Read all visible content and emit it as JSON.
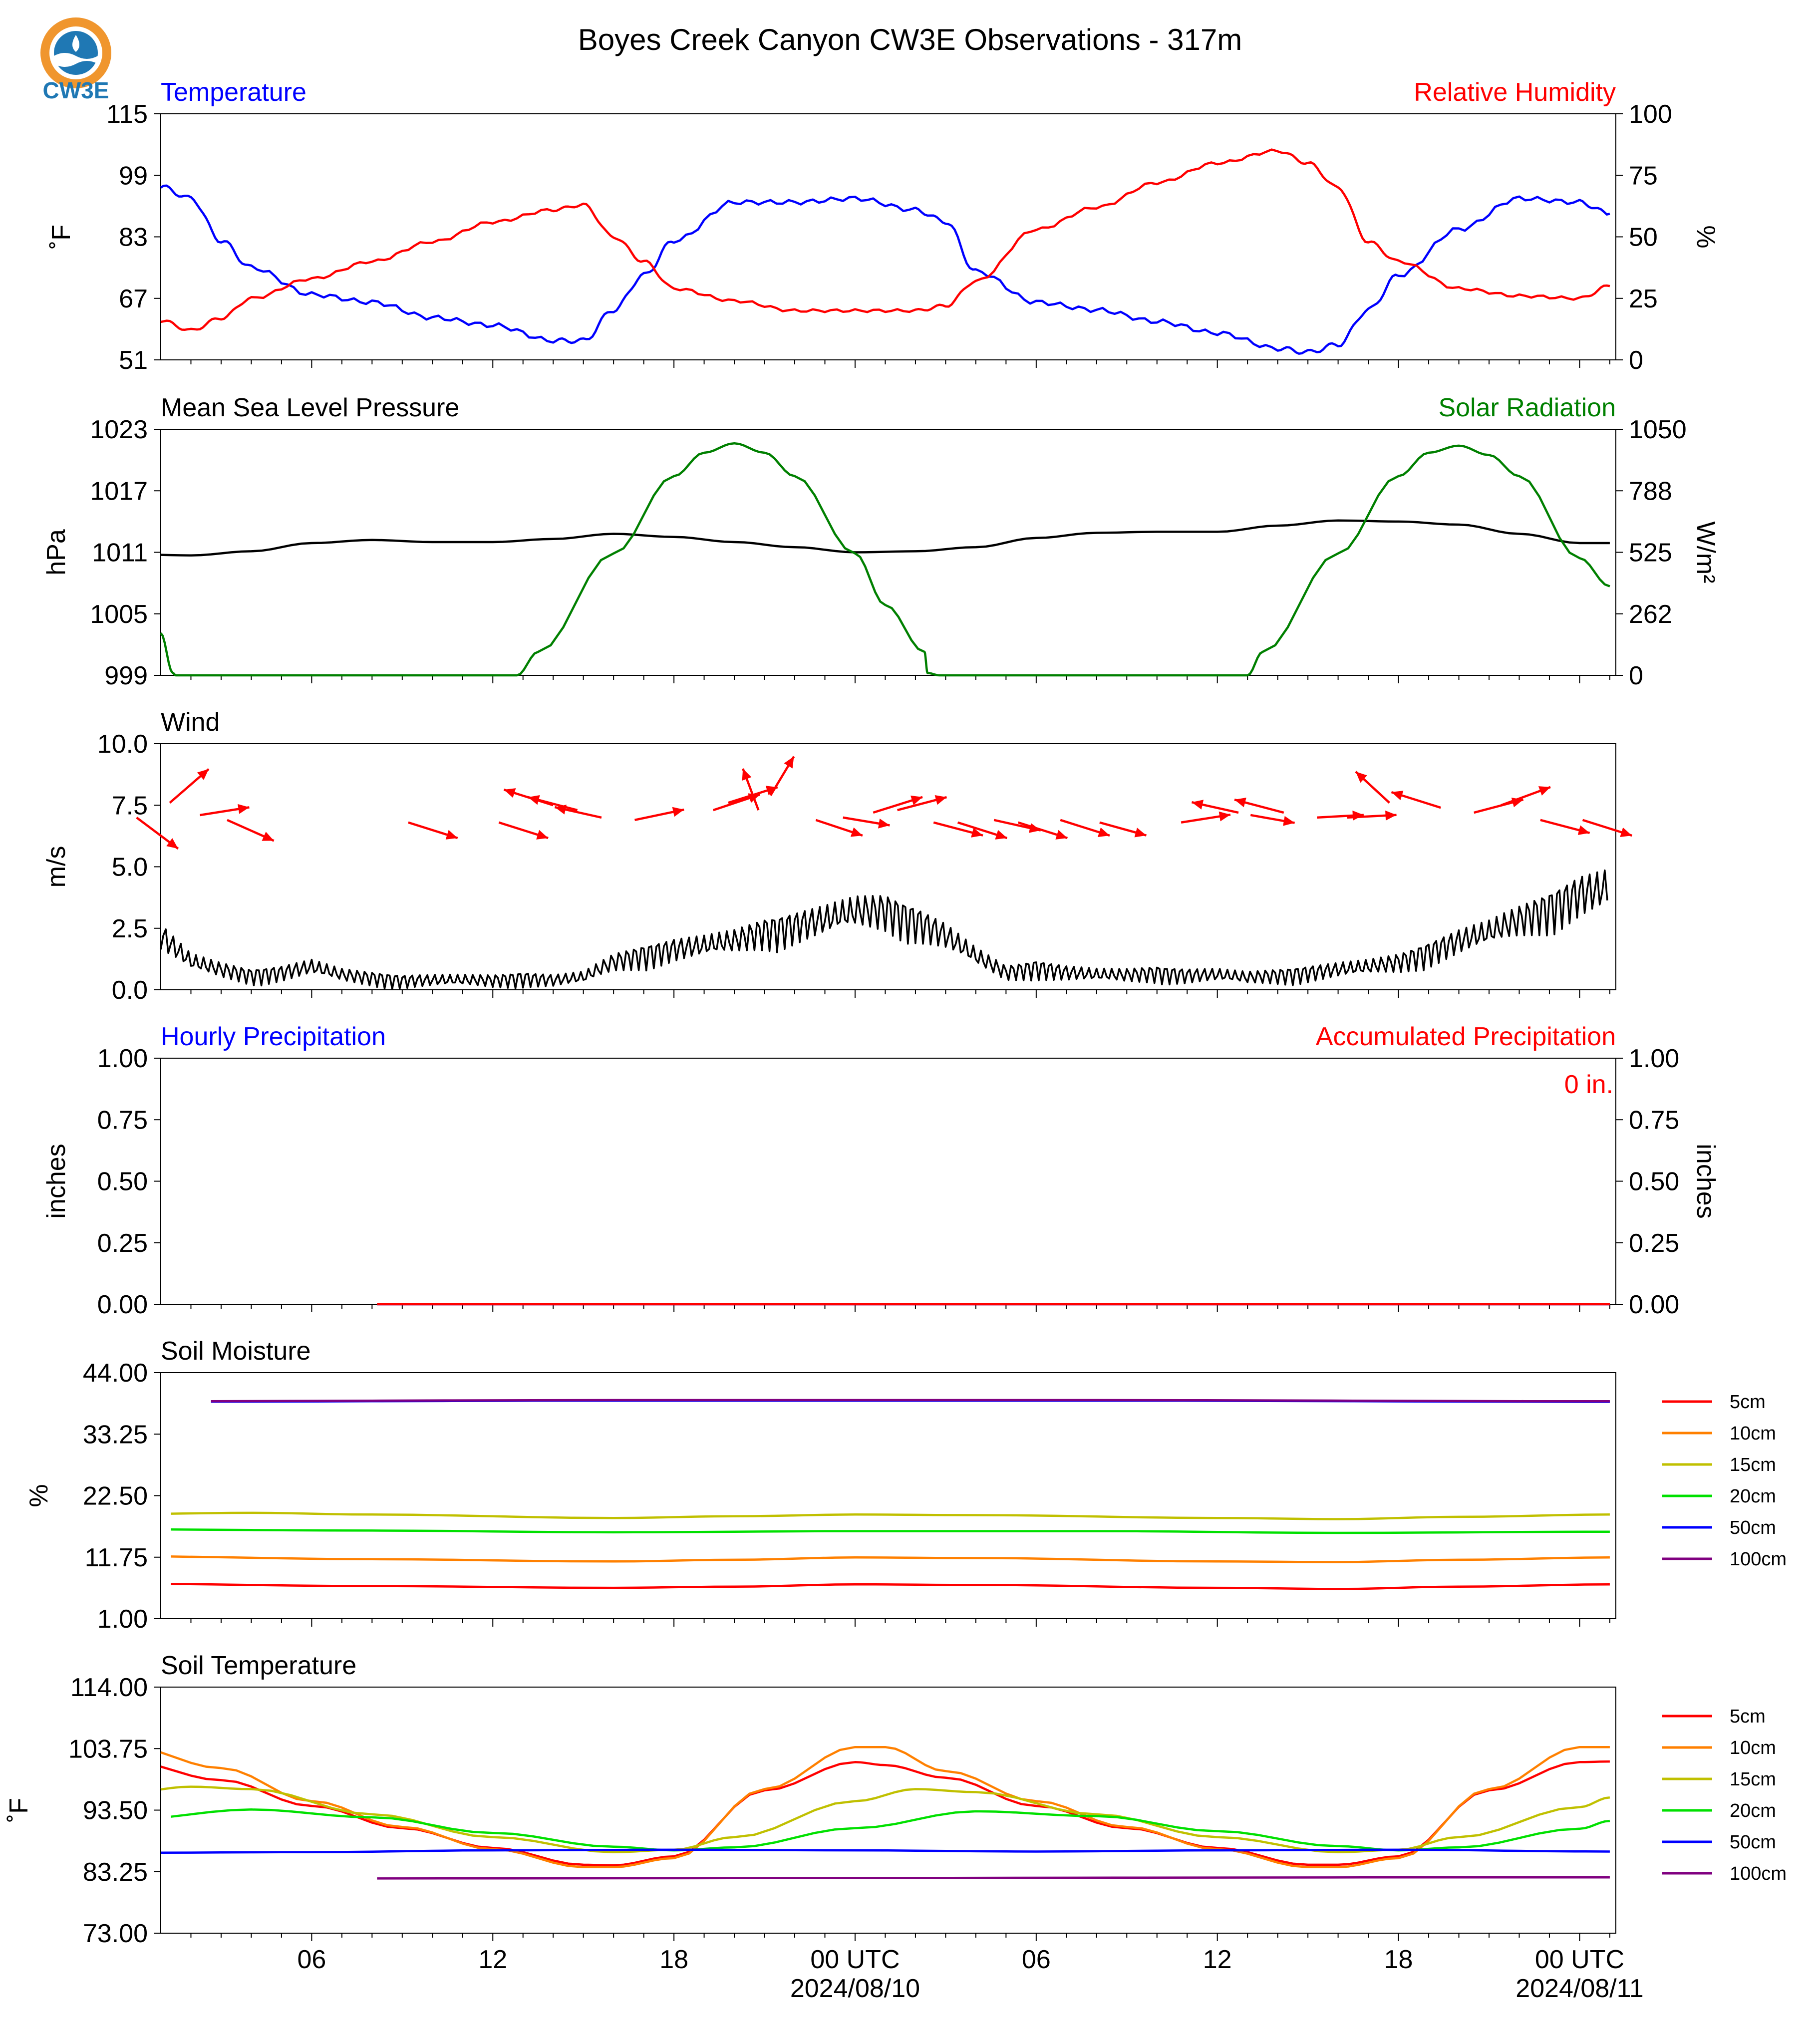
{
  "title": "Boyes Creek Canyon CW3E Observations - 317m",
  "logo_text": "CW3E",
  "colors": {
    "temperature": "#0000ff",
    "humidity": "#ff0000",
    "pressure": "#000000",
    "solar": "#008000",
    "wind_speed": "#000000",
    "wind_arrows": "#ff0000",
    "precip_hourly": "#0000ff",
    "precip_accum": "#ff0000",
    "depths": [
      "#ff0000",
      "#ff8000",
      "#c0c000",
      "#00e000",
      "#0000ff",
      "#800080"
    ],
    "logo_orange": "#f0962e",
    "logo_blue": "#1f78b4"
  },
  "x_axis": {
    "ticks": [
      "06",
      "12",
      "18",
      "00 UTC",
      "06",
      "12",
      "18",
      "00 UTC"
    ],
    "dates": [
      "2024/08/10",
      "2024/08/11"
    ]
  },
  "chart_data": [
    {
      "id": "temp_rh",
      "type": "line",
      "left_title": "Temperature",
      "right_title": "Relative Humidity",
      "ylabel": "˚F",
      "ylabel_right": "%",
      "yticks": [
        "115",
        "99",
        "83",
        "67",
        "51"
      ],
      "yticks_right": [
        "100",
        "75",
        "50",
        "25",
        "0"
      ],
      "ylim": [
        51,
        115
      ],
      "ylim_right": [
        0,
        100
      ],
      "x_hours": [
        1,
        2,
        3,
        4,
        6,
        8,
        10,
        12,
        14,
        15,
        16,
        17,
        18,
        20,
        22,
        24,
        26,
        27,
        28,
        30,
        32,
        34,
        36,
        38,
        39,
        40,
        41,
        42,
        44,
        46,
        48,
        49
      ],
      "series": [
        {
          "name": "Temperature",
          "axis": "left",
          "values": [
            96,
            93,
            82,
            75,
            68,
            66,
            62,
            60,
            56,
            56,
            64,
            73,
            82,
            92,
            92,
            93,
            90,
            87,
            74,
            66,
            64,
            61,
            58,
            54,
            53,
            55,
            64,
            73,
            85,
            93,
            92,
            89
          ]
        },
        {
          "name": "Relative Humidity",
          "axis": "left_scaled",
          "values": [
            16,
            12,
            17,
            25,
            33,
            40,
            48,
            56,
            61,
            63,
            50,
            40,
            29,
            24,
            20,
            20,
            20,
            22,
            32,
            53,
            62,
            72,
            80,
            85,
            80,
            70,
            48,
            40,
            29,
            26,
            25,
            30
          ]
        }
      ]
    },
    {
      "id": "pressure_solar",
      "type": "line",
      "left_title": "Mean Sea Level Pressure",
      "right_title": "Solar Radiation",
      "ylabel": "hPa",
      "ylabel_right": "W/m²",
      "yticks": [
        "1023",
        "1017",
        "1011",
        "1005",
        "999"
      ],
      "yticks_right": [
        "1050",
        "788",
        "525",
        "262",
        "0"
      ],
      "ylim": [
        999,
        1023
      ],
      "ylim_right": [
        0,
        1050
      ],
      "series": [
        {
          "name": "Mean Sea Level Pressure",
          "axis": "left",
          "x": [
            0,
            2,
            4,
            6,
            8,
            10,
            12,
            14,
            16,
            18,
            20,
            22,
            24,
            26,
            28,
            30,
            32,
            34,
            36,
            38,
            40,
            42,
            44,
            46,
            48,
            49
          ],
          "values": [
            1010.8,
            1010.7,
            1011.1,
            1011.9,
            1012.2,
            1012.0,
            1012.0,
            1012.3,
            1012.8,
            1012.5,
            1012.0,
            1011.5,
            1011.0,
            1011.1,
            1011.5,
            1012.4,
            1012.9,
            1013.0,
            1013.0,
            1013.6,
            1014.1,
            1014.0,
            1013.7,
            1012.8,
            1011.9,
            1011.9
          ]
        },
        {
          "name": "Solar Radiation",
          "axis": "right",
          "x": [
            0,
            1,
            1.4,
            1.5,
            2,
            12.3,
            12.8,
            13.5,
            16,
            18,
            19,
            20,
            21,
            22,
            24,
            25,
            26.3,
            26.4,
            26.8,
            36.5,
            37,
            37.5,
            40,
            42,
            43,
            44,
            45,
            46,
            48,
            49
          ],
          "values": [
            390,
            180,
            10,
            0,
            0,
            0,
            0,
            100,
            520,
            850,
            950,
            990,
            950,
            850,
            520,
            300,
            100,
            10,
            0,
            0,
            0,
            100,
            520,
            850,
            950,
            980,
            940,
            850,
            500,
            380
          ]
        }
      ]
    },
    {
      "id": "wind",
      "type": "line",
      "left_title": "Wind",
      "ylabel": "m/s",
      "yticks": [
        "10.0",
        "7.5",
        "5.0",
        "2.5",
        "0.0"
      ],
      "ylim": [
        0,
        10
      ],
      "series": [
        {
          "name": "Wind Speed",
          "axis": "left",
          "x": [
            0,
            1,
            2,
            3,
            4,
            5,
            6,
            7,
            8,
            9,
            10,
            11,
            12,
            13,
            14,
            15,
            16,
            17,
            18,
            19,
            20,
            21,
            22,
            23,
            24,
            25,
            26,
            27,
            28,
            29,
            30,
            31,
            32,
            33,
            34,
            35,
            36,
            37,
            38,
            39,
            40,
            41,
            42,
            43,
            44,
            45,
            46,
            47,
            48,
            49
          ],
          "values": [
            2.2,
            2.0,
            1.0,
            0.7,
            0.5,
            0.6,
            0.8,
            0.5,
            0.4,
            0.3,
            0.3,
            0.3,
            0.3,
            0.4,
            0.3,
            0.4,
            1.0,
            1.3,
            1.5,
            1.6,
            1.8,
            2.2,
            2.4,
            2.6,
            2.9,
            3.0,
            2.6,
            2.0,
            1.2,
            0.6,
            0.8,
            0.6,
            0.5,
            0.5,
            0.6,
            0.5,
            0.5,
            0.4,
            0.5,
            0.6,
            0.7,
            0.8,
            1.0,
            1.4,
            1.8,
            2.1,
            2.6,
            3.1,
            3.6,
            3.8
          ]
        },
        {
          "name": "Wind Direction",
          "type": "vector",
          "hours": [
            0.2,
            1.3,
            2.3,
            3.2,
            9.2,
            12.2,
            14,
            14.8,
            15.6,
            16.7,
            19.3,
            19.8,
            20.8,
            21.2,
            22.7,
            23.6,
            24.6,
            25.4,
            26.6,
            27.4,
            28.6,
            29.4,
            30.8,
            32.1,
            34.8,
            36.7,
            37.1,
            38.2,
            39.3,
            40.3,
            41.7,
            43.4,
            44.5,
            45.4,
            46.7,
            48.1
          ],
          "speed": [
            7.0,
            7.6,
            7.1,
            6.9,
            6.8,
            6.8,
            7.5,
            7.3,
            7.0,
            6.9,
            7.3,
            7.6,
            7.3,
            7.9,
            6.9,
            7.0,
            7.2,
            7.3,
            6.8,
            6.8,
            6.9,
            6.8,
            6.9,
            6.8,
            6.8,
            7.2,
            7.1,
            7.2,
            7.0,
            7.0,
            7.6,
            7.4,
            7.2,
            7.5,
            6.9,
            6.9
          ],
          "u": [
            1.6,
            1.5,
            1.9,
            1.8,
            1.9,
            1.9,
            -1.9,
            -1.9,
            -1.8,
            1.9,
            1.8,
            1.9,
            -0.6,
            0.9,
            1.8,
            1.8,
            1.9,
            1.9,
            1.9,
            1.9,
            1.8,
            1.9,
            1.9,
            1.8,
            1.9,
            -1.8,
            1.7,
            -1.9,
            1.8,
            1.9,
            -1.3,
            -1.9,
            1.9,
            1.9,
            1.9,
            1.9
          ],
          "v": [
            -1.2,
            1.3,
            0.3,
            -0.8,
            -0.6,
            -0.6,
            0.6,
            0.5,
            0.4,
            0.4,
            0.6,
            0.6,
            1.6,
            1.5,
            -0.6,
            -0.3,
            0.6,
            0.5,
            -0.5,
            -0.6,
            -0.4,
            -0.6,
            -0.6,
            -0.5,
            0.3,
            0.4,
            -0.3,
            0.5,
            0.1,
            0.1,
            1.2,
            0.6,
            0.5,
            0.7,
            -0.5,
            -0.6
          ]
        }
      ]
    },
    {
      "id": "precip",
      "type": "line",
      "left_title": "Hourly Precipitation",
      "right_title": "Accumulated Precipitation",
      "annotation": "0 in.",
      "ylabel": "inches",
      "ylabel_right": "inches",
      "yticks": [
        "1.00",
        "0.75",
        "0.50",
        "0.25",
        "0.00"
      ],
      "yticks_right": [
        "1.00",
        "0.75",
        "0.50",
        "0.25",
        "0.00"
      ],
      "ylim": [
        0,
        1
      ],
      "ylim_right": [
        0,
        1
      ],
      "series": [
        {
          "name": "Hourly Precipitation",
          "axis": "left",
          "x": [
            0,
            49
          ],
          "values": [
            0,
            0
          ]
        },
        {
          "name": "Accumulated Precipitation",
          "axis": "right",
          "x": [
            0,
            49
          ],
          "values": [
            0,
            0
          ]
        }
      ]
    },
    {
      "id": "soil_moisture",
      "type": "line",
      "left_title": "Soil Moisture",
      "ylabel": "%",
      "yticks": [
        "44.00",
        "33.25",
        "22.50",
        "11.75",
        "1.00"
      ],
      "ylim": [
        1,
        44
      ],
      "legend": [
        "5cm",
        "10cm",
        "15cm",
        "20cm",
        "50cm",
        "100cm"
      ],
      "series": [
        {
          "name": "5cm",
          "axis": "left",
          "x": [
            0,
            8,
            16,
            20,
            24,
            28,
            36,
            40,
            44,
            49
          ],
          "values": [
            7.1,
            6.7,
            6.4,
            6.6,
            7.0,
            6.9,
            6.4,
            6.2,
            6.6,
            7.0
          ]
        },
        {
          "name": "10cm",
          "axis": "left",
          "x": [
            0,
            8,
            16,
            20,
            24,
            28,
            36,
            40,
            44,
            49
          ],
          "values": [
            11.9,
            11.4,
            11.0,
            11.3,
            11.7,
            11.6,
            11.0,
            10.9,
            11.3,
            11.7
          ]
        },
        {
          "name": "15cm",
          "axis": "left",
          "x": [
            0,
            4,
            8,
            16,
            20,
            24,
            28,
            36,
            40,
            44,
            49
          ],
          "values": [
            19.3,
            19.5,
            19.2,
            18.6,
            18.9,
            19.2,
            19.1,
            18.6,
            18.4,
            18.8,
            19.2
          ]
        },
        {
          "name": "20cm",
          "axis": "left",
          "x": [
            0,
            8,
            16,
            24,
            32,
            40,
            49
          ],
          "values": [
            16.6,
            16.4,
            16.1,
            16.3,
            16.3,
            16.0,
            16.2
          ]
        },
        {
          "name": "50cm",
          "axis": "left",
          "x": [
            0,
            16,
            32,
            49
          ],
          "values": [
            38.9,
            39.1,
            39.1,
            38.9
          ]
        },
        {
          "name": "100cm",
          "axis": "left",
          "x": [
            0,
            16,
            32,
            49
          ],
          "values": [
            39.0,
            39.2,
            39.2,
            39.0
          ]
        }
      ]
    },
    {
      "id": "soil_temperature",
      "type": "line",
      "left_title": "Soil Temperature",
      "ylabel": "˚F",
      "yticks": [
        "114.00",
        "103.75",
        "93.50",
        "83.25",
        "73.00"
      ],
      "ylim": [
        73,
        114
      ],
      "legend": [
        "5cm",
        "10cm",
        "15cm",
        "20cm",
        "50cm",
        "100cm"
      ],
      "series": [
        {
          "name": "5cm",
          "axis": "left",
          "x": [
            0,
            3,
            6,
            9,
            12,
            15,
            16,
            18,
            21,
            24,
            25,
            27,
            30,
            33,
            36,
            39,
            40,
            42,
            45,
            48,
            49
          ],
          "values": [
            101.5,
            98.5,
            94.2,
            90.5,
            87.2,
            84.4,
            84.3,
            85.8,
            96.8,
            101.5,
            101.0,
            98.9,
            94.2,
            90.5,
            87.2,
            84.4,
            84.4,
            85.8,
            96.8,
            101.5,
            101.6
          ]
        },
        {
          "name": "10cm",
          "axis": "left",
          "x": [
            0,
            3,
            6,
            9,
            12,
            15,
            16,
            18,
            21,
            24,
            25,
            27,
            30,
            33,
            36,
            39,
            40,
            42,
            45,
            48,
            49
          ],
          "values": [
            104.0,
            100.5,
            95.0,
            90.7,
            87.0,
            84.0,
            84.0,
            85.5,
            97.0,
            104.0,
            104.0,
            100.0,
            95.0,
            90.7,
            87.0,
            84.0,
            84.0,
            85.5,
            97.0,
            104.0,
            104.0
          ]
        },
        {
          "name": "15cm",
          "axis": "left",
          "x": [
            0,
            2,
            4,
            8,
            12,
            16,
            18,
            20,
            24,
            26,
            28,
            32,
            36,
            40,
            42,
            44,
            48,
            49
          ],
          "values": [
            96.5,
            97.4,
            97.0,
            92.8,
            89.0,
            86.5,
            86.9,
            89.0,
            95.0,
            97.0,
            96.5,
            92.8,
            89.0,
            86.5,
            86.9,
            89.0,
            94.0,
            95.6
          ]
        },
        {
          "name": "20cm",
          "axis": "left",
          "x": [
            0,
            4,
            8,
            12,
            16,
            18,
            20,
            24,
            28,
            32,
            36,
            40,
            42,
            44,
            48,
            49
          ],
          "values": [
            92.0,
            93.6,
            92.3,
            89.7,
            87.4,
            86.8,
            87.3,
            90.5,
            93.3,
            92.5,
            90.0,
            87.5,
            86.8,
            87.3,
            90.4,
            91.7
          ]
        },
        {
          "name": "50cm",
          "axis": "left",
          "x": [
            0,
            6,
            12,
            18,
            24,
            30,
            36,
            42,
            49
          ],
          "values": [
            86.4,
            86.5,
            86.8,
            86.9,
            86.8,
            86.6,
            86.8,
            86.9,
            86.6
          ]
        },
        {
          "name": "100cm",
          "axis": "left",
          "x": [
            0,
            49
          ],
          "values": [
            82.1,
            82.3
          ]
        }
      ]
    }
  ]
}
